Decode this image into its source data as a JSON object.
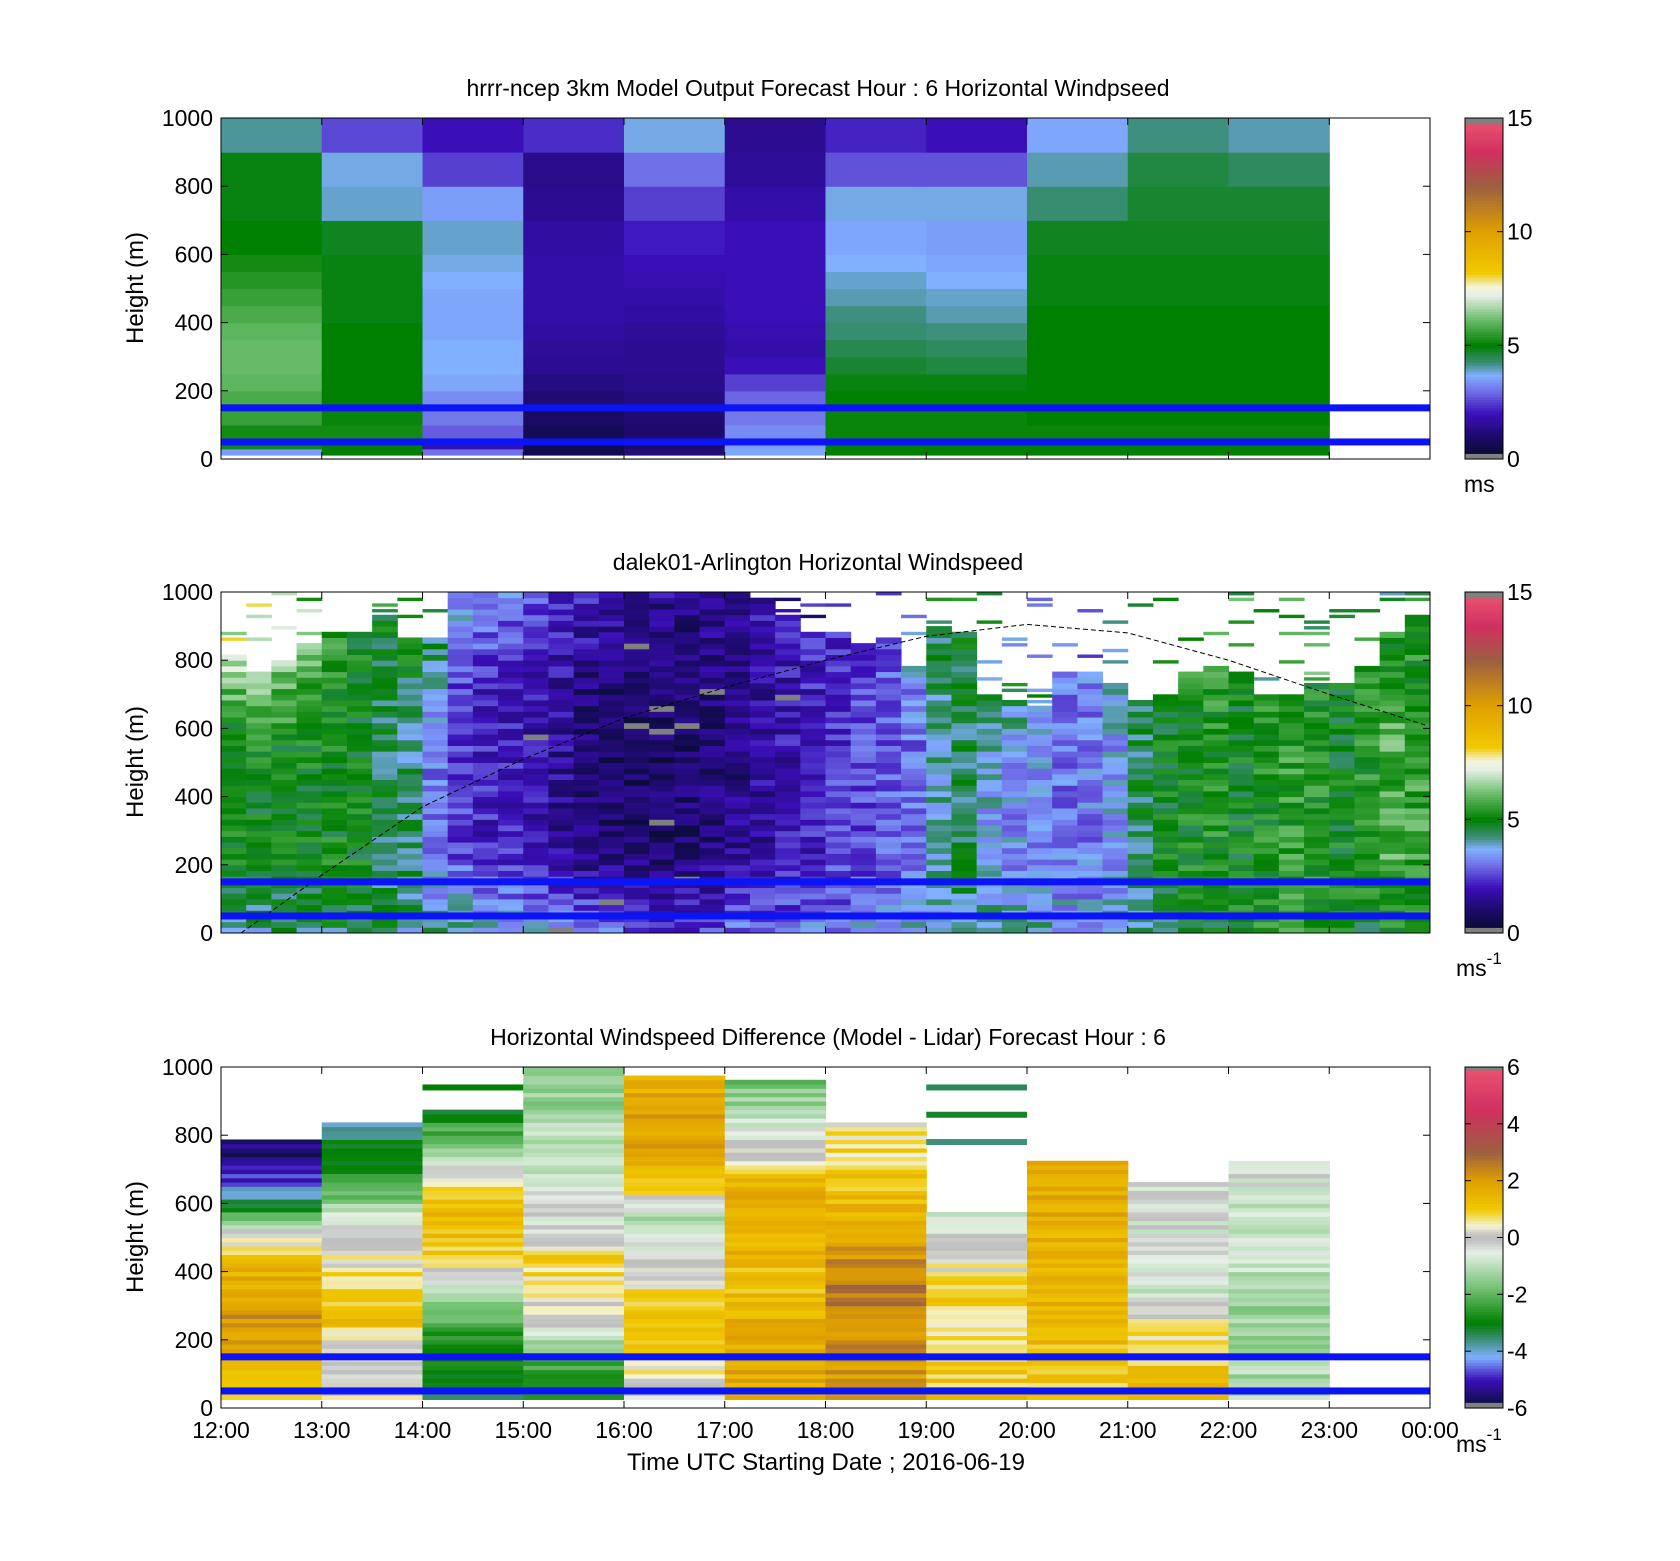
{
  "chart_data": [
    {
      "type": "heatmap",
      "panel": "top",
      "title": "hrrr-ncep 3km Model Output   Forecast Hour : 6 Horizontal Windpseed",
      "ylabel": "Height (m)",
      "ylim": [
        0,
        1000
      ],
      "yticks": [
        "0",
        "200",
        "400",
        "600",
        "800",
        "1000"
      ],
      "colorbar": {
        "ticks": [
          "0",
          "5",
          "10",
          "15"
        ],
        "range": [
          0,
          15
        ],
        "unit": "ms"
      },
      "time_columns": [
        "12:00",
        "13:00",
        "14:00",
        "15:00",
        "16:00",
        "17:00",
        "18:00",
        "19:00",
        "20:00",
        "21:00",
        "22:00"
      ],
      "height_bins": [
        0,
        30,
        60,
        100,
        150,
        200,
        250,
        300,
        350,
        400,
        450,
        500,
        550,
        600,
        700,
        800,
        900,
        1000
      ],
      "values": [
        [
          3.5,
          5.0,
          3.0,
          0.6,
          1.2,
          3.6,
          5.0,
          5.0,
          5.0,
          5.0,
          5.0
        ],
        [
          4.8,
          5.0,
          1.9,
          0.6,
          1.0,
          3.5,
          5.0,
          5.0,
          5.0,
          5.0,
          5.0
        ],
        [
          5.2,
          5.2,
          2.8,
          0.7,
          1.0,
          3.3,
          5.1,
          5.1,
          5.1,
          5.1,
          5.1
        ],
        [
          5.6,
          5.1,
          3.1,
          0.9,
          1.1,
          3.1,
          5.1,
          5.1,
          5.0,
          5.0,
          5.0
        ],
        [
          5.8,
          5.0,
          3.3,
          1.1,
          1.3,
          2.9,
          5.0,
          5.0,
          5.0,
          5.0,
          5.0
        ],
        [
          6.0,
          5.0,
          3.6,
          1.3,
          1.4,
          2.5,
          4.9,
          4.9,
          5.0,
          5.0,
          5.0
        ],
        [
          6.1,
          5.0,
          3.7,
          1.5,
          1.5,
          2.0,
          4.7,
          4.6,
          5.0,
          5.0,
          5.0
        ],
        [
          6.1,
          5.0,
          3.7,
          1.6,
          1.5,
          1.8,
          4.5,
          4.4,
          5.0,
          5.0,
          5.0
        ],
        [
          6.0,
          5.0,
          3.6,
          1.7,
          1.6,
          1.9,
          4.3,
          4.2,
          5.0,
          5.0,
          5.0
        ],
        [
          5.8,
          4.9,
          3.6,
          1.8,
          1.7,
          2.0,
          4.2,
          4.0,
          5.0,
          5.0,
          5.0
        ],
        [
          5.6,
          4.9,
          3.6,
          1.8,
          1.8,
          2.0,
          4.0,
          3.9,
          4.9,
          4.9,
          4.9
        ],
        [
          5.4,
          4.9,
          3.7,
          1.8,
          1.9,
          2.0,
          3.9,
          3.7,
          4.9,
          4.9,
          4.9
        ],
        [
          5.2,
          4.9,
          3.8,
          1.8,
          2.0,
          2.0,
          3.7,
          3.6,
          4.9,
          4.9,
          4.9
        ],
        [
          5.0,
          4.8,
          3.9,
          1.7,
          2.1,
          2.0,
          3.6,
          3.5,
          4.8,
          4.8,
          4.8
        ],
        [
          4.9,
          3.9,
          3.5,
          1.5,
          2.5,
          1.8,
          3.8,
          3.8,
          4.3,
          4.7,
          4.7
        ],
        [
          4.9,
          3.8,
          2.5,
          1.4,
          3.0,
          1.6,
          2.7,
          2.7,
          4.0,
          4.6,
          4.4
        ],
        [
          4.1,
          2.6,
          2.0,
          2.3,
          3.8,
          1.5,
          2.2,
          2.0,
          3.6,
          4.2,
          4.0
        ],
        [
          4.0,
          2.3,
          1.7,
          2.6,
          2.6,
          1.6,
          1.9,
          1.8,
          3.9,
          4.0,
          3.7
        ]
      ],
      "reference_lines_m": [
        50,
        150
      ]
    },
    {
      "type": "heatmap",
      "panel": "middle",
      "title": "dalek01-Arlington  Horizontal Windspeed",
      "ylabel": "Height (m)",
      "ylim": [
        0,
        1000
      ],
      "yticks": [
        "0",
        "200",
        "400",
        "600",
        "800",
        "1000"
      ],
      "colorbar": {
        "ticks": [
          "0",
          "5",
          "10",
          "15"
        ],
        "range": [
          0,
          15
        ],
        "unit": "ms",
        "unit_exp": "-1"
      },
      "time_range_hours": [
        12,
        24
      ],
      "column_profiles": [
        {
          "t": 12.0,
          "bottom": 4.0,
          "mid": 5.0,
          "top": 7.0,
          "top_m": 820
        },
        {
          "t": 12.25,
          "bottom": 4.2,
          "mid": 5.0,
          "top": 7.0,
          "top_m": 760
        },
        {
          "t": 12.5,
          "bottom": 4.2,
          "mid": 5.1,
          "top": 6.4,
          "top_m": 800
        },
        {
          "t": 12.75,
          "bottom": 4.4,
          "mid": 5.1,
          "top": 6.1,
          "top_m": 850
        },
        {
          "t": 13.0,
          "bottom": 4.6,
          "mid": 5.1,
          "top": 5.5,
          "top_m": 880
        },
        {
          "t": 13.25,
          "bottom": 4.5,
          "mid": 5.0,
          "top": 5.0,
          "top_m": 880
        },
        {
          "t": 13.5,
          "bottom": 4.4,
          "mid": 4.6,
          "top": 5.0,
          "top_m": 940
        },
        {
          "t": 13.75,
          "bottom": 4.2,
          "mid": 4.3,
          "top": 5.0,
          "top_m": 860
        },
        {
          "t": 14.0,
          "bottom": 4.0,
          "mid": 3.2,
          "top": 4.5,
          "top_m": 860
        },
        {
          "t": 14.25,
          "bottom": 4.3,
          "mid": 2.5,
          "top": 3.7,
          "top_m": 1000
        },
        {
          "t": 14.5,
          "bottom": 4.0,
          "mid": 2.2,
          "top": 3.4,
          "top_m": 1000
        },
        {
          "t": 14.75,
          "bottom": 3.8,
          "mid": 2.1,
          "top": 3.2,
          "top_m": 1000
        },
        {
          "t": 15.0,
          "bottom": 3.6,
          "mid": 1.9,
          "top": 2.8,
          "top_m": 1000
        },
        {
          "t": 15.25,
          "bottom": 3.4,
          "mid": 1.6,
          "top": 2.4,
          "top_m": 1000
        },
        {
          "t": 15.5,
          "bottom": 3.2,
          "mid": 1.2,
          "top": 2.2,
          "top_m": 1000
        },
        {
          "t": 15.75,
          "bottom": 3.0,
          "mid": 1.0,
          "top": 2.0,
          "top_m": 1000
        },
        {
          "t": 16.0,
          "bottom": 2.8,
          "mid": 0.9,
          "top": 1.8,
          "top_m": 1000
        },
        {
          "t": 16.25,
          "bottom": 2.6,
          "mid": 0.9,
          "top": 1.6,
          "top_m": 1000
        },
        {
          "t": 16.5,
          "bottom": 2.4,
          "mid": 1.0,
          "top": 1.5,
          "top_m": 1000
        },
        {
          "t": 16.75,
          "bottom": 2.6,
          "mid": 1.2,
          "top": 1.5,
          "top_m": 1000
        },
        {
          "t": 17.0,
          "bottom": 2.8,
          "mid": 1.4,
          "top": 1.7,
          "top_m": 1000
        },
        {
          "t": 17.25,
          "bottom": 2.9,
          "mid": 1.6,
          "top": 1.9,
          "top_m": 990
        },
        {
          "t": 17.5,
          "bottom": 3.0,
          "mid": 1.9,
          "top": 2.0,
          "top_m": 930
        },
        {
          "t": 17.75,
          "bottom": 3.1,
          "mid": 2.1,
          "top": 2.2,
          "top_m": 880
        },
        {
          "t": 18.0,
          "bottom": 3.2,
          "mid": 2.4,
          "top": 2.4,
          "top_m": 880
        },
        {
          "t": 18.25,
          "bottom": 3.3,
          "mid": 2.6,
          "top": 2.6,
          "top_m": 850
        },
        {
          "t": 18.5,
          "bottom": 3.4,
          "mid": 2.8,
          "top": 2.8,
          "top_m": 860
        },
        {
          "t": 18.75,
          "bottom": 3.5,
          "mid": 3.0,
          "top": 3.4,
          "top_m": 780
        },
        {
          "t": 19.0,
          "bottom": 3.8,
          "mid": 4.0,
          "top": 4.6,
          "top_m": 900
        },
        {
          "t": 19.25,
          "bottom": 4.2,
          "mid": 4.5,
          "top": 4.7,
          "top_m": 890
        },
        {
          "t": 19.5,
          "bottom": 4.4,
          "mid": 3.6,
          "top": 4.3,
          "top_m": 700
        },
        {
          "t": 19.75,
          "bottom": 4.2,
          "mid": 3.4,
          "top": 4.2,
          "top_m": 680
        },
        {
          "t": 20.0,
          "bottom": 4.0,
          "mid": 3.3,
          "top": 3.8,
          "top_m": 660
        },
        {
          "t": 20.25,
          "bottom": 3.8,
          "mid": 3.1,
          "top": 3.0,
          "top_m": 760
        },
        {
          "t": 20.5,
          "bottom": 3.6,
          "mid": 3.2,
          "top": 3.2,
          "top_m": 760
        },
        {
          "t": 20.75,
          "bottom": 3.8,
          "mid": 3.5,
          "top": 3.8,
          "top_m": 740
        },
        {
          "t": 21.0,
          "bottom": 4.2,
          "mid": 4.5,
          "top": 4.6,
          "top_m": 680
        },
        {
          "t": 21.25,
          "bottom": 4.6,
          "mid": 5.0,
          "top": 5.0,
          "top_m": 700
        },
        {
          "t": 21.5,
          "bottom": 4.8,
          "mid": 5.1,
          "top": 5.3,
          "top_m": 760
        },
        {
          "t": 21.75,
          "bottom": 5.0,
          "mid": 5.2,
          "top": 5.5,
          "top_m": 780
        },
        {
          "t": 22.0,
          "bottom": 5.2,
          "mid": 5.0,
          "top": 5.0,
          "top_m": 760
        },
        {
          "t": 22.25,
          "bottom": 5.3,
          "mid": 5.2,
          "top": 5.2,
          "top_m": 700
        },
        {
          "t": 22.5,
          "bottom": 5.5,
          "mid": 5.5,
          "top": 5.4,
          "top_m": 700
        },
        {
          "t": 22.75,
          "bottom": 5.4,
          "mid": 5.3,
          "top": 5.2,
          "top_m": 730
        },
        {
          "t": 23.0,
          "bottom": 5.2,
          "mid": 5.0,
          "top": 5.0,
          "top_m": 740
        },
        {
          "t": 23.25,
          "bottom": 5.0,
          "mid": 5.3,
          "top": 5.4,
          "top_m": 780
        },
        {
          "t": 23.5,
          "bottom": 5.1,
          "mid": 5.8,
          "top": 5.2,
          "top_m": 880
        },
        {
          "t": 23.75,
          "bottom": 5.0,
          "mid": 5.6,
          "top": 5.0,
          "top_m": 930
        }
      ],
      "boundary_layer_curve": {
        "t": [
          12.2,
          13,
          14,
          15,
          16,
          17,
          18,
          19,
          20,
          21,
          22,
          23,
          23.95
        ],
        "height_m": [
          0,
          170,
          370,
          510,
          630,
          720,
          800,
          870,
          905,
          880,
          800,
          700,
          610
        ]
      },
      "reference_lines_m": [
        50,
        150
      ]
    },
    {
      "type": "heatmap",
      "panel": "bottom",
      "title": "Horizontal Windspeed Difference (Model - Lidar) Forecast Hour : 6",
      "ylabel": "Height (m)",
      "xlabel": "Time UTC  Starting Date ; 2016-06-19",
      "ylim": [
        0,
        1000
      ],
      "yticks": [
        "0",
        "200",
        "400",
        "600",
        "800",
        "1000"
      ],
      "xticks": [
        "12:00",
        "13:00",
        "14:00",
        "15:00",
        "16:00",
        "17:00",
        "18:00",
        "19:00",
        "20:00",
        "21:00",
        "22:00",
        "23:00",
        "00:00"
      ],
      "colorbar": {
        "ticks": [
          "-6",
          "-4",
          "-2",
          "0",
          "2",
          "4",
          "6"
        ],
        "range": [
          -6,
          6
        ],
        "unit": "ms",
        "unit_exp": "-1"
      },
      "columns": [
        {
          "t": "12:00",
          "top_m": 790,
          "profile_m": [
            0,
            150,
            250,
            350,
            450,
            520,
            600,
            680,
            790
          ],
          "profile_v": [
            1.2,
            1.5,
            2.2,
            1.8,
            1.1,
            -0.2,
            -3.2,
            -5.0,
            -5.6
          ]
        },
        {
          "t": "13:00",
          "top_m": 840,
          "profile_m": [
            0,
            150,
            250,
            350,
            450,
            550,
            650,
            750,
            840
          ],
          "profile_v": [
            0.5,
            -0.4,
            1.2,
            0.8,
            0.3,
            -0.6,
            -2.2,
            -3.2,
            -3.6
          ]
        },
        {
          "t": "14:00",
          "top_m": 870,
          "profile_m": [
            0,
            150,
            250,
            350,
            450,
            550,
            650,
            750,
            870
          ],
          "profile_v": [
            -3.4,
            -3.0,
            -2.2,
            -0.6,
            1.0,
            1.4,
            0.8,
            -1.5,
            -3.0
          ]
        },
        {
          "t": "15:00",
          "top_m": 1000,
          "profile_m": [
            0,
            150,
            250,
            350,
            450,
            550,
            650,
            750,
            850,
            1000
          ],
          "profile_v": [
            -3.2,
            -2.2,
            -0.2,
            0.6,
            0.8,
            -0.5,
            -0.6,
            -1.0,
            -1.2,
            -1.6
          ]
        },
        {
          "t": "16:00",
          "top_m": 980,
          "profile_m": [
            0,
            150,
            250,
            350,
            450,
            550,
            650,
            750,
            850,
            980
          ],
          "profile_v": [
            -0.6,
            0.8,
            1.2,
            0.6,
            -0.4,
            -1.4,
            1.0,
            1.8,
            2.0,
            1.4
          ]
        },
        {
          "t": "17:00",
          "top_m": 960,
          "profile_m": [
            0,
            150,
            250,
            350,
            450,
            550,
            650,
            750,
            850,
            960
          ],
          "profile_v": [
            1.6,
            1.8,
            1.6,
            1.2,
            1.4,
            1.8,
            1.6,
            0.2,
            -1.0,
            -1.8
          ]
        },
        {
          "t": "18:00",
          "top_m": 840,
          "profile_m": [
            0,
            150,
            250,
            350,
            450,
            550,
            650,
            750,
            840
          ],
          "profile_v": [
            1.8,
            2.2,
            2.4,
            2.6,
            2.2,
            1.6,
            1.2,
            0.8,
            0.4
          ]
        },
        {
          "t": "19:00",
          "top_m": 570,
          "profile_m": [
            0,
            150,
            250,
            350,
            450,
            570
          ],
          "profile_v": [
            1.2,
            0.8,
            0.6,
            1.0,
            0.2,
            -0.6
          ]
        },
        {
          "t": "20:00",
          "top_m": 720,
          "profile_m": [
            0,
            150,
            250,
            350,
            450,
            550,
            650,
            720
          ],
          "profile_v": [
            1.0,
            1.2,
            1.4,
            1.6,
            1.4,
            1.8,
            1.6,
            1.8
          ]
        },
        {
          "t": "21:00",
          "top_m": 660,
          "profile_m": [
            0,
            150,
            250,
            350,
            450,
            550,
            660
          ],
          "profile_v": [
            1.4,
            0.9,
            0.4,
            -0.8,
            -0.6,
            -0.4,
            -0.2
          ]
        },
        {
          "t": "22:00",
          "top_m": 720,
          "profile_m": [
            0,
            150,
            250,
            350,
            450,
            550,
            650,
            720
          ],
          "profile_v": [
            -1.0,
            -1.2,
            -1.4,
            -1.2,
            -0.8,
            -0.9,
            -0.6,
            -0.4
          ]
        }
      ],
      "high_level_bands": [
        {
          "t": "14:00",
          "height_m": 940,
          "value": -3.0
        },
        {
          "t": "19:00",
          "height_m": 940,
          "value": -3.4
        },
        {
          "t": "19:00",
          "height_m": 860,
          "value": -3.2
        },
        {
          "t": "19:00",
          "height_m": 780,
          "value": -3.6
        }
      ],
      "reference_lines_m": [
        50,
        150
      ]
    }
  ]
}
